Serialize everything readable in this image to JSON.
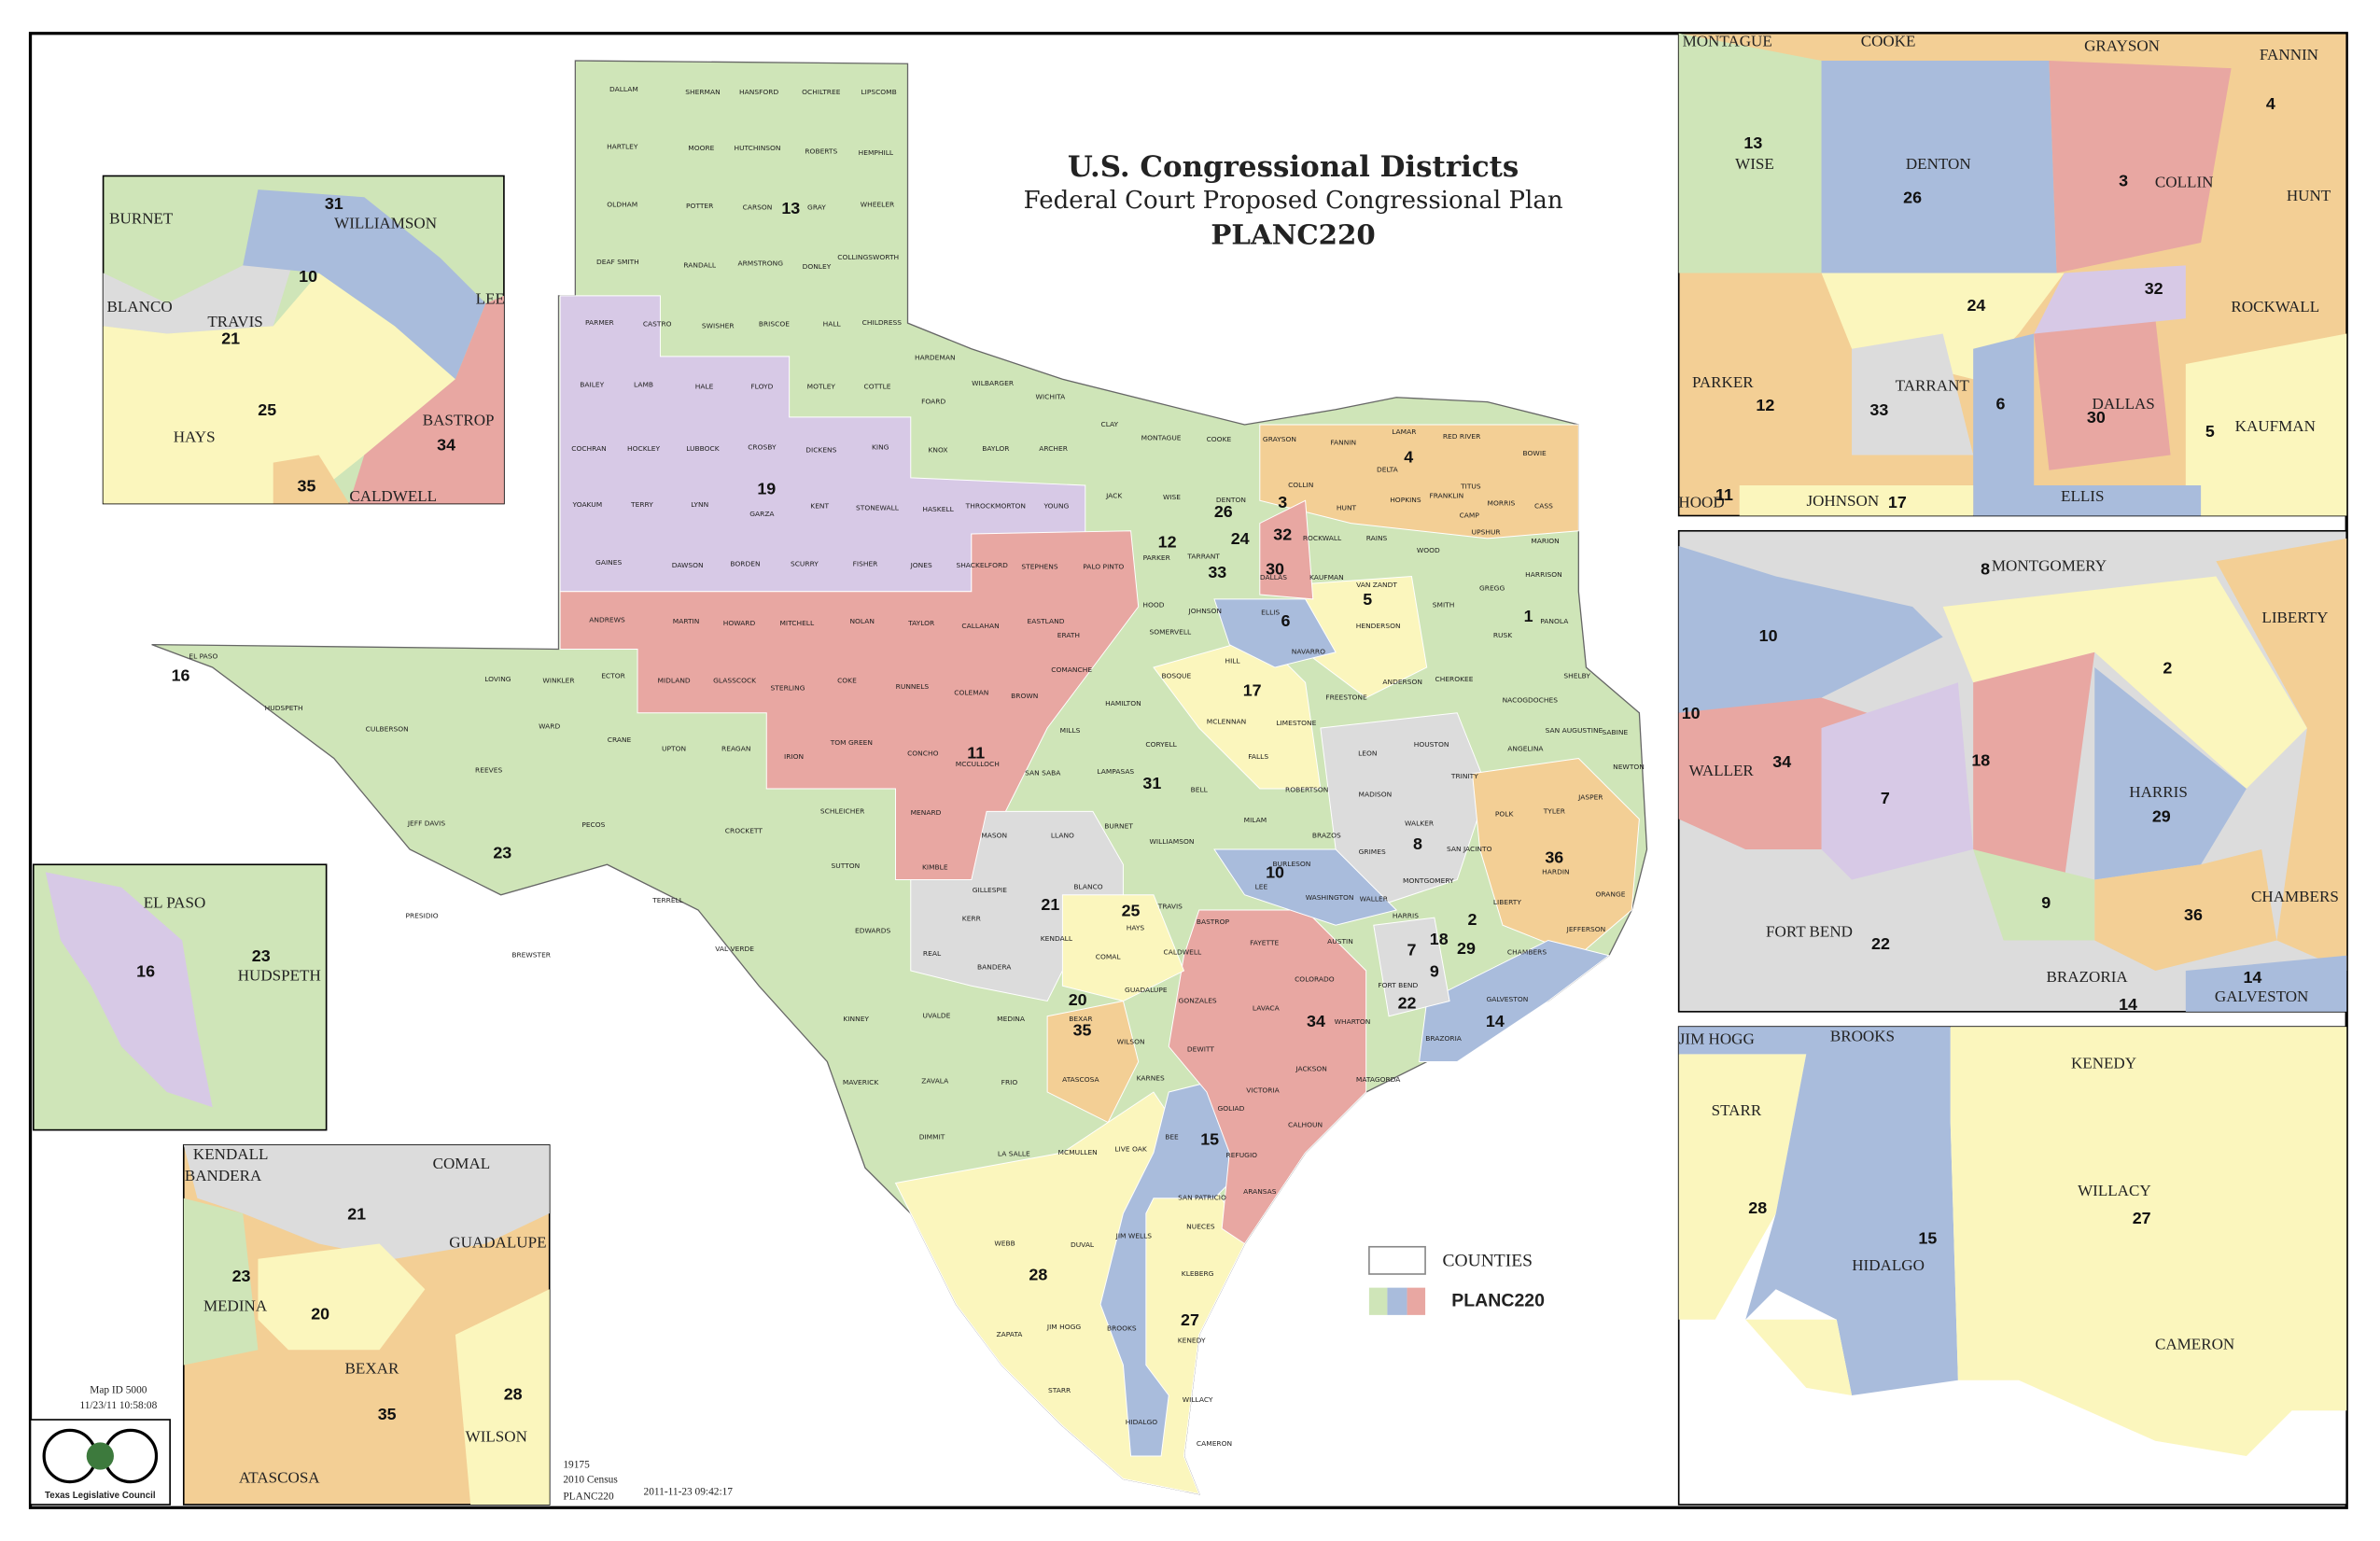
{
  "title": {
    "heading": "U.S. Congressional Districts",
    "subtitle": "Federal Court Proposed Congressional Plan",
    "plan": "PLANC220"
  },
  "legend": {
    "counties": "COUNTIES",
    "plan": "PLANC220"
  },
  "footer": {
    "map_id": "Map ID 5000",
    "timestamp": "11/23/11 10:58:08",
    "council": "Texas Legislative Council",
    "number": "19175",
    "census": "2010 Census",
    "plan": "PLANC220",
    "date": "2011-11-23 09:42:17"
  },
  "main_map": {
    "districts": [
      "13",
      "19",
      "11",
      "23",
      "16",
      "12",
      "26",
      "3",
      "24",
      "32",
      "33",
      "30",
      "4",
      "5",
      "6",
      "1",
      "17",
      "31",
      "10",
      "8",
      "36",
      "21",
      "25",
      "20",
      "35",
      "7",
      "18",
      "29",
      "2",
      "9",
      "22",
      "14",
      "34",
      "15",
      "28",
      "27"
    ],
    "counties": [
      "DALLAM",
      "SHERMAN",
      "HANSFORD",
      "OCHILTREE",
      "LIPSCOMB",
      "HARTLEY",
      "MOORE",
      "HUTCHINSON",
      "ROBERTS",
      "HEMPHILL",
      "OLDHAM",
      "POTTER",
      "CARSON",
      "GRAY",
      "WHEELER",
      "DEAF SMITH",
      "RANDALL",
      "ARMSTRONG",
      "DONLEY",
      "COLLINGSWORTH",
      "PARMER",
      "CASTRO",
      "SWISHER",
      "BRISCOE",
      "HALL",
      "CHILDRESS",
      "BAILEY",
      "LAMB",
      "HALE",
      "FLOYD",
      "MOTLEY",
      "COTTLE",
      "HARDEMAN",
      "FOARD",
      "WILBARGER",
      "WICHITA",
      "CLAY",
      "MONTAGUE",
      "COOKE",
      "GRAYSON",
      "FANNIN",
      "LAMAR",
      "RED RIVER",
      "BOWIE",
      "COCHRAN",
      "HOCKLEY",
      "LUBBOCK",
      "CROSBY",
      "DICKENS",
      "KING",
      "KNOX",
      "BAYLOR",
      "ARCHER",
      "YOAKUM",
      "TERRY",
      "LYNN",
      "GARZA",
      "KENT",
      "STONEWALL",
      "HASKELL",
      "THROCKMORTON",
      "YOUNG",
      "JACK",
      "WISE",
      "DENTON",
      "COLLIN",
      "HUNT",
      "DELTA",
      "HOPKINS",
      "FRANKLIN",
      "TITUS",
      "MORRIS",
      "CAMP",
      "CASS",
      "UPSHUR",
      "MARION",
      "WOOD",
      "RAINS",
      "GAINES",
      "DAWSON",
      "BORDEN",
      "SCURRY",
      "FISHER",
      "JONES",
      "SHACKELFORD",
      "STEPHENS",
      "PALO PINTO",
      "PARKER",
      "TARRANT",
      "DALLAS",
      "ROCKWALL",
      "KAUFMAN",
      "VAN ZANDT",
      "GREGG",
      "HARRISON",
      "ANDREWS",
      "MARTIN",
      "HOWARD",
      "MITCHELL",
      "NOLAN",
      "TAYLOR",
      "CALLAHAN",
      "EASTLAND",
      "ERATH",
      "HOOD",
      "JOHNSON",
      "ELLIS",
      "SOMERVELL",
      "HENDERSON",
      "SMITH",
      "RUSK",
      "PANOLA",
      "EL PASO",
      "LOVING",
      "WINKLER",
      "ECTOR",
      "MIDLAND",
      "GLASSCOCK",
      "STERLING",
      "COKE",
      "RUNNELS",
      "COLEMAN",
      "BROWN",
      "COMANCHE",
      "BOSQUE",
      "HILL",
      "NAVARRO",
      "ANDERSON",
      "CHEROKEE",
      "SHELBY",
      "HUDSPETH",
      "CULBERSON",
      "WARD",
      "CRANE",
      "UPTON",
      "REAGAN",
      "IRION",
      "TOM GREEN",
      "CONCHO",
      "MCCULLOCH",
      "SAN SABA",
      "MILLS",
      "HAMILTON",
      "CORYELL",
      "MCLENNAN",
      "FALLS",
      "LIMESTONE",
      "FREESTONE",
      "HOUSTON",
      "NACOGDOCHES",
      "SAN AUGUSTINE",
      "ANGELINA",
      "SABINE",
      "REEVES",
      "JEFF DAVIS",
      "PECOS",
      "CROCKETT",
      "SCHLEICHER",
      "MENARD",
      "MASON",
      "LLANO",
      "LAMPASAS",
      "BURNET",
      "BELL",
      "WILLIAMSON",
      "MILAM",
      "ROBERTSON",
      "LEON",
      "MADISON",
      "BRAZOS",
      "WALKER",
      "TRINITY",
      "POLK",
      "TYLER",
      "JASPER",
      "NEWTON",
      "PRESIDIO",
      "TERRELL",
      "SUTTON",
      "KIMBLE",
      "GILLESPIE",
      "BLANCO",
      "TRAVIS",
      "LEE",
      "BURLESON",
      "GRIMES",
      "SAN JACINTO",
      "MONTGOMERY",
      "HARDIN",
      "LIBERTY",
      "ORANGE",
      "VAL VERDE",
      "EDWARDS",
      "KERR",
      "KENDALL",
      "REAL",
      "BANDERA",
      "COMAL",
      "HAYS",
      "BASTROP",
      "WASHINGTON",
      "WALLER",
      "AUSTIN",
      "FAYETTE",
      "CHAMBERS",
      "JEFFERSON",
      "BREWSTER",
      "CALDWELL",
      "COLORADO",
      "FORT BEND",
      "GALVESTON",
      "GUADALUPE",
      "GONZALES",
      "LAVACA",
      "WHARTON",
      "BRAZORIA",
      "KINNEY",
      "UVALDE",
      "MEDINA",
      "BEXAR",
      "WILSON",
      "DEWITT",
      "JACKSON",
      "MATAGORDA",
      "MAVERICK",
      "ZAVALA",
      "FRIO",
      "ATASCOSA",
      "KARNES",
      "VICTORIA",
      "GOLIAD",
      "CALHOUN",
      "DIMMIT",
      "LA SALLE",
      "MCMULLEN",
      "LIVE OAK",
      "BEE",
      "REFUGIO",
      "SAN PATRICIO",
      "ARANSAS",
      "WEBB",
      "DUVAL",
      "JIM WELLS",
      "NUECES",
      "KLEBERG",
      "ZAPATA",
      "JIM HOGG",
      "BROOKS",
      "KENEDY",
      "STARR",
      "WILLACY",
      "HIDALGO",
      "CAMERON",
      "HARRIS"
    ]
  },
  "insets": [
    {
      "labels": [
        "BURNET",
        "31",
        "WILLIAMSON",
        "10",
        "BLANCO",
        "TRAVIS",
        "21",
        "LEE",
        "25",
        "HAYS",
        "BASTROP",
        "34",
        "35",
        "CALDWELL"
      ]
    },
    {
      "labels": [
        "EL PASO",
        "16",
        "23",
        "HUDSPETH"
      ]
    },
    {
      "labels": [
        "KENDALL",
        "BANDERA",
        "COMAL",
        "21",
        "GUADALUPE",
        "23",
        "MEDINA",
        "20",
        "BEXAR",
        "35",
        "28",
        "WILSON",
        "ATASCOSA"
      ]
    },
    {
      "labels": [
        "MONTAGUE",
        "COOKE",
        "GRAYSON",
        "FANNIN",
        "4",
        "13",
        "WISE",
        "DENTON",
        "26",
        "3",
        "COLLIN",
        "HUNT",
        "32",
        "24",
        "ROCKWALL",
        "PARKER",
        "12",
        "TARRANT",
        "33",
        "6",
        "DALLAS",
        "30",
        "KAUFMAN",
        "5",
        "HOOD",
        "11",
        "JOHNSON",
        "17",
        "ELLIS"
      ]
    },
    {
      "labels": [
        "8",
        "MONTGOMERY",
        "LIBERTY",
        "10",
        "2",
        "10",
        "18",
        "WALLER",
        "34",
        "7",
        "HARRIS",
        "29",
        "9",
        "CHAMBERS",
        "FORT BEND",
        "22",
        "36",
        "BRAZORIA",
        "14",
        "14",
        "GALVESTON"
      ]
    },
    {
      "labels": [
        "JIM HOGG",
        "BROOKS",
        "KENEDY",
        "STARR",
        "28",
        "15",
        "WILLACY",
        "27",
        "HIDALGO",
        "CAMERON"
      ]
    }
  ]
}
